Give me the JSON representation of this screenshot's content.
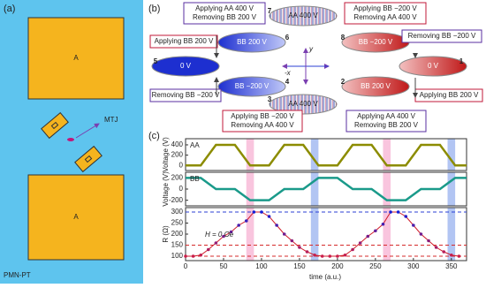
{
  "panel_a": {
    "label": "(a)",
    "top_square": "A",
    "bottom_square": "A",
    "mtj": "MTJ",
    "substrate": "PMN-PT"
  },
  "panel_b": {
    "label": "(b)",
    "states": [
      {
        "num": "7",
        "text": "AA 400 V"
      },
      {
        "num": "8",
        "text": "BB −200 V"
      },
      {
        "num": "1",
        "text": "0 V"
      },
      {
        "num": "2",
        "text": "BB 200 V"
      },
      {
        "num": "3",
        "text": "AA 400 V"
      },
      {
        "num": "4",
        "text": "BB −200 V"
      },
      {
        "num": "5",
        "text": "0 V"
      },
      {
        "num": "6",
        "text": "BB 200 V"
      }
    ],
    "boxes": [
      {
        "lines": [
          "Applying AA 400 V",
          "Removing BB 200 V"
        ]
      },
      {
        "lines": [
          "Applying BB −200 V",
          "Removing AA 400 V"
        ]
      },
      {
        "lines": [
          "Removing BB −200 V"
        ]
      },
      {
        "lines": [
          "Applying BB 200 V"
        ]
      },
      {
        "lines": [
          "Applying AA 400 V",
          "Removing BB 200 V"
        ]
      },
      {
        "lines": [
          "Applying BB −200 V",
          "Removing AA 400 V"
        ]
      },
      {
        "lines": [
          "Removing BB −200 V"
        ]
      },
      {
        "lines": [
          "Applying BB 200 V"
        ]
      }
    ],
    "axis_x": "-x",
    "axis_y": "y"
  },
  "panel_c": {
    "label": "(c)",
    "xlabel": "time (a.u.)",
    "annotation": "H = 0 Oe"
  },
  "chart_data": [
    {
      "type": "line",
      "ylabel": "Voltage (V)",
      "xlim": [
        0,
        370
      ],
      "ylim": [
        -100,
        520
      ],
      "yticks": [
        0,
        200,
        400
      ],
      "x": [
        0,
        20,
        40,
        65,
        85,
        110,
        130,
        155,
        175,
        200,
        220,
        245,
        265,
        290,
        310,
        335,
        355,
        370
      ],
      "series": [
        {
          "name": "AA",
          "color": "#8c8c00",
          "values": [
            0,
            0,
            400,
            400,
            0,
            0,
            400,
            400,
            0,
            0,
            400,
            400,
            0,
            0,
            400,
            400,
            0,
            0
          ]
        }
      ]
    },
    {
      "type": "line",
      "ylabel": "Voltage (V)",
      "xlim": [
        0,
        370
      ],
      "ylim": [
        -300,
        300
      ],
      "yticks": [
        -200,
        0,
        200
      ],
      "x": [
        0,
        20,
        40,
        65,
        85,
        110,
        130,
        155,
        175,
        200,
        220,
        245,
        265,
        290,
        310,
        335,
        355,
        370
      ],
      "series": [
        {
          "name": "BB",
          "color": "#1a9a8a",
          "values": [
            200,
            200,
            0,
            0,
            -200,
            -200,
            0,
            0,
            200,
            200,
            0,
            0,
            -200,
            -200,
            0,
            0,
            200,
            200
          ]
        }
      ]
    },
    {
      "type": "line",
      "ylabel": "R (Ω)",
      "xlim": [
        0,
        370
      ],
      "ylim": [
        80,
        320
      ],
      "yticks": [
        100,
        150,
        200,
        250,
        300
      ],
      "xticks": [
        0,
        50,
        100,
        150,
        200,
        250,
        300,
        350
      ],
      "markers": true,
      "ref_lines": [
        {
          "value": 300,
          "color": "#2b3fd6"
        },
        {
          "value": 150,
          "color": "#d62b2b"
        },
        {
          "value": 100,
          "color": "#d62b2b"
        }
      ],
      "bands": [
        {
          "from": 80,
          "to": 90,
          "color": "#f7b6d6"
        },
        {
          "from": 165,
          "to": 175,
          "color": "#9fb6f0"
        },
        {
          "from": 260,
          "to": 270,
          "color": "#f7b6d6"
        },
        {
          "from": 345,
          "to": 355,
          "color": "#9fb6f0"
        }
      ],
      "x": [
        0,
        10,
        20,
        30,
        40,
        50,
        60,
        70,
        80,
        90,
        100,
        110,
        120,
        130,
        140,
        150,
        160,
        170,
        180,
        190,
        200,
        210,
        220,
        230,
        240,
        250,
        260,
        270,
        280,
        290,
        300,
        310,
        320,
        330,
        340,
        350,
        360
      ],
      "series": [
        {
          "color": "#d01c2a",
          "values": [
            100,
            100,
            105,
            130,
            160,
            190,
            210,
            240,
            260,
            300,
            300,
            280,
            240,
            200,
            170,
            140,
            120,
            105,
            100,
            100,
            100,
            105,
            130,
            160,
            190,
            215,
            245,
            300,
            300,
            280,
            240,
            200,
            170,
            140,
            120,
            105,
            100
          ]
        }
      ]
    }
  ]
}
